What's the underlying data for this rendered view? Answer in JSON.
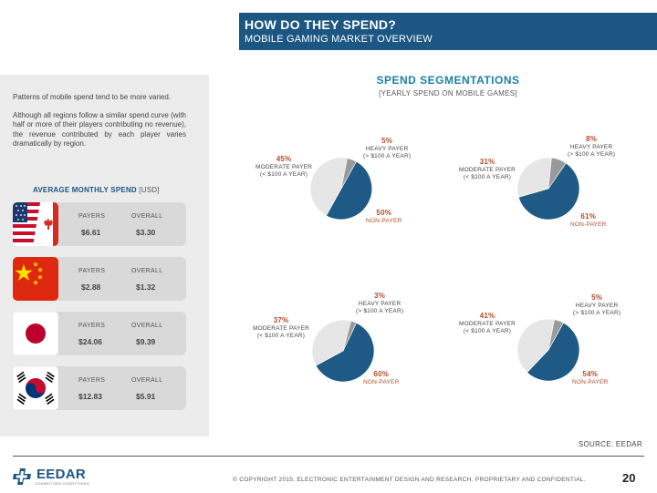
{
  "header": {
    "title": "HOW DO THEY SPEND?",
    "subtitle": "MOBILE GAMING MARKET OVERVIEW"
  },
  "sidebar": {
    "paragraphs": [
      "Patterns of mobile spend tend to be more varied.",
      "Although all regions follow a similar spend curve (with half or more of their players contributing no revenue), the revenue contributed by each player varies dramatically by region."
    ],
    "spend_heading": "AVERAGE MONTHLY SPEND",
    "spend_unit": "[USD]",
    "payers_label": "PAYERS",
    "overall_label": "OVERALL",
    "regions": [
      {
        "flag": "us-ca-flag",
        "payers": "$6.61",
        "overall": "$3.30"
      },
      {
        "flag": "china-flag",
        "payers": "$2.88",
        "overall": "$1.32"
      },
      {
        "flag": "japan-flag",
        "payers": "$24.06",
        "overall": "$9.39"
      },
      {
        "flag": "korea-flag",
        "payers": "$12.83",
        "overall": "$5.91"
      }
    ]
  },
  "segments": {
    "title": "SPEND SEGMENTATIONS",
    "subtitle": "[YEARLY SPEND ON MOBILE GAMES]",
    "heavy_label_1": "HEAVY PAYER",
    "heavy_label_2": "(> $100 A YEAR)",
    "moderate_label_1": "MODERATE PAYER",
    "moderate_label_2": "(< $100 A YEAR)",
    "non_label": "NON-PAYER",
    "pies": [
      {
        "region": "us-ca",
        "heavy": "5%",
        "moderate": "45%",
        "non": "50%"
      },
      {
        "region": "japan",
        "heavy": "8%",
        "moderate": "31%",
        "non": "61%"
      },
      {
        "region": "china",
        "heavy": "3%",
        "moderate": "37%",
        "non": "60%"
      },
      {
        "region": "korea",
        "heavy": "5%",
        "moderate": "41%",
        "non": "54%"
      }
    ]
  },
  "colors": {
    "brand": "#1c5683",
    "non_payer": "#1e5a85",
    "moderate": "#e6e6e6",
    "heavy": "#9a9a9a",
    "accent": "#b34a2a"
  },
  "footer": {
    "source": "SOURCE: EEDAR",
    "logo_text": "EEDAR",
    "logo_tag": "CONNECTING EVERYTHING",
    "copyright": "© COPYRIGHT 2015. ELECTRONIC ENTERTAINMENT DESIGN AND RESEARCH. PROPRIETARY AND CONFIDENTIAL.",
    "page_number": "20"
  }
}
